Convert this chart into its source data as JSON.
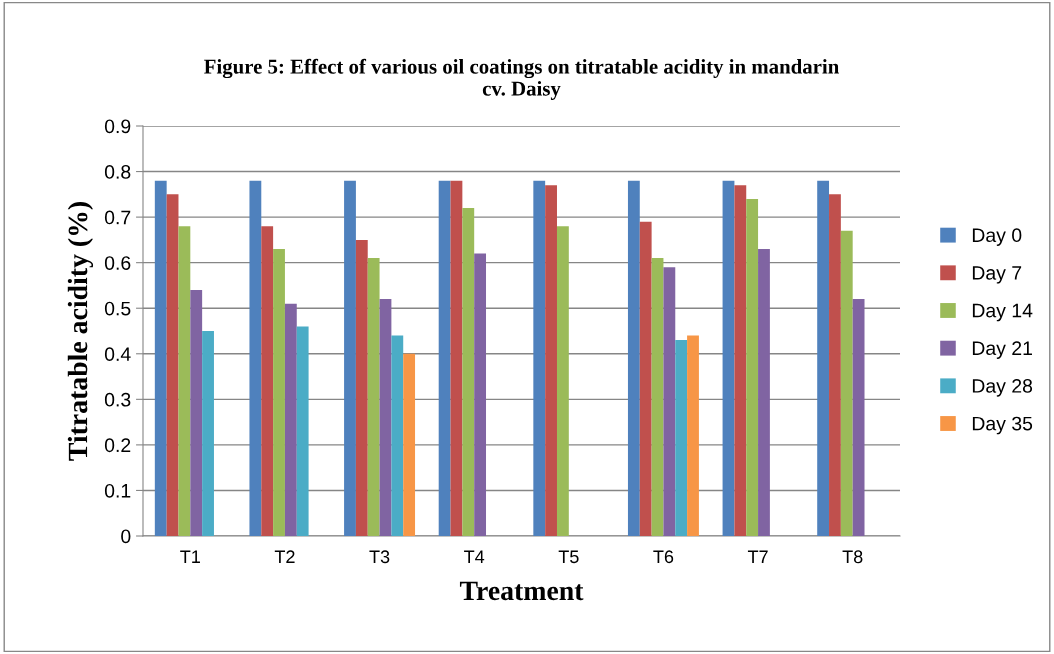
{
  "chart_data": {
    "type": "bar",
    "title": "Figure 5: Effect of various oil coatings on titratable acidity in mandarin\ncv. Daisy",
    "xlabel": "Treatment",
    "ylabel": "Titratable acidity (%)",
    "categories": [
      "T1",
      "T2",
      "T3",
      "T4",
      "T5",
      "T6",
      "T7",
      "T8"
    ],
    "series": [
      {
        "name": "Day 0",
        "color": "#4f81bd",
        "values": [
          0.78,
          0.78,
          0.78,
          0.78,
          0.78,
          0.78,
          0.78,
          0.78
        ]
      },
      {
        "name": "Day 7",
        "color": "#c0504d",
        "values": [
          0.75,
          0.68,
          0.65,
          0.78,
          0.77,
          0.69,
          0.77,
          0.75
        ]
      },
      {
        "name": "Day 14",
        "color": "#9bbb59",
        "values": [
          0.68,
          0.63,
          0.61,
          0.72,
          0.68,
          0.61,
          0.74,
          0.67
        ]
      },
      {
        "name": "Day 21",
        "color": "#8064a2",
        "values": [
          0.54,
          0.51,
          0.52,
          0.62,
          null,
          0.59,
          0.63,
          0.52
        ]
      },
      {
        "name": "Day 28",
        "color": "#4bacc6",
        "values": [
          0.45,
          0.46,
          0.44,
          null,
          null,
          0.43,
          null,
          null
        ]
      },
      {
        "name": "Day 35",
        "color": "#f79646",
        "values": [
          null,
          null,
          0.4,
          null,
          null,
          0.44,
          null,
          null
        ]
      }
    ],
    "ylim": [
      0,
      0.9
    ],
    "yticks": [
      0,
      0.1,
      0.2,
      0.3,
      0.4,
      0.5,
      0.6,
      0.7,
      0.8,
      0.9
    ],
    "grid": "y",
    "legend": "right"
  }
}
